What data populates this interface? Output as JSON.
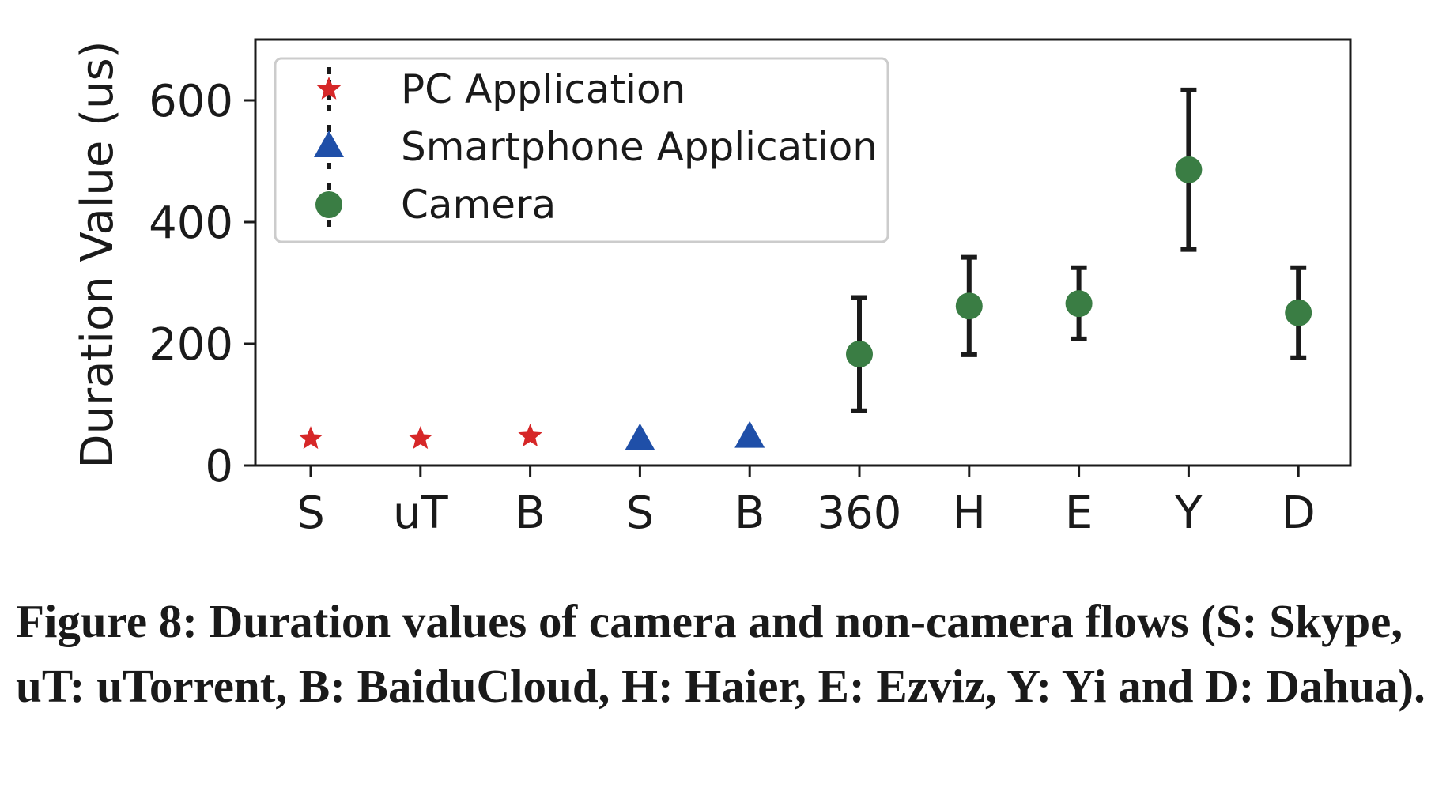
{
  "chart_data": {
    "type": "scatter",
    "categories": [
      "S",
      "uT",
      "B",
      "S",
      "B",
      "360",
      "H",
      "E",
      "Y",
      "D"
    ],
    "ylabel": "Duration Value (us)",
    "ylim": [
      0,
      700
    ],
    "yticks": [
      0,
      200,
      400,
      600
    ],
    "grid": false,
    "legend_position": "top-left",
    "series": [
      {
        "name": "PC Application",
        "marker": "star",
        "color": "#d62728",
        "indices": [
          0,
          1,
          2
        ],
        "values": [
          44,
          44,
          48
        ],
        "err_low": [
          0,
          0,
          0
        ],
        "err_high": [
          0,
          0,
          0
        ]
      },
      {
        "name": "Smartphone Application",
        "marker": "triangle",
        "color": "#1f4fa8",
        "indices": [
          3,
          4
        ],
        "values": [
          42,
          46
        ],
        "err_low": [
          0,
          0
        ],
        "err_high": [
          0,
          0
        ]
      },
      {
        "name": "Camera",
        "marker": "circle",
        "color": "#3a7d44",
        "indices": [
          5,
          6,
          7,
          8,
          9
        ],
        "values": [
          183,
          262,
          266,
          486,
          251
        ],
        "err_low": [
          90,
          182,
          208,
          355,
          177
        ],
        "err_high": [
          276,
          342,
          325,
          617,
          325
        ]
      }
    ]
  },
  "caption": "Figure 8: Duration values of camera and non-camera flows (S: Skype, uT: uTorrent, B: BaiduCloud, H: Haier, E: Ezviz, Y: Yi and D: Dahua)."
}
